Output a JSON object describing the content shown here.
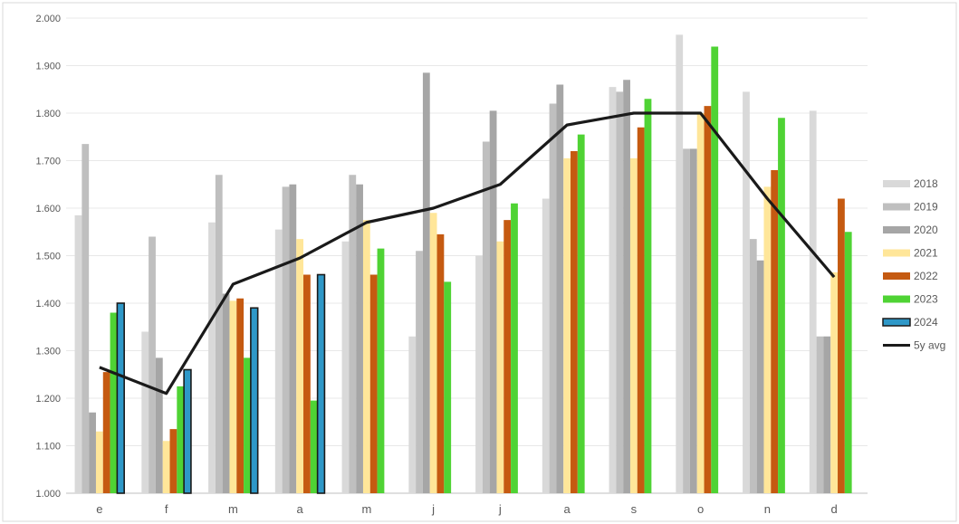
{
  "chart_data": {
    "type": "bar",
    "categories": [
      "e",
      "f",
      "m",
      "a",
      "m",
      "j",
      "j",
      "a",
      "s",
      "o",
      "n",
      "d"
    ],
    "ylim": [
      1000,
      2000
    ],
    "yticks": [
      "1.000",
      "1.100",
      "1.200",
      "1.300",
      "1.400",
      "1.500",
      "1.600",
      "1.700",
      "1.800",
      "1.900",
      "2.000"
    ],
    "grid": true,
    "legend_position": "right",
    "series": [
      {
        "name": "2018",
        "type": "bar",
        "color": "#d9d9d9",
        "values": [
          1585,
          1340,
          1570,
          1555,
          1530,
          1330,
          1500,
          1620,
          1855,
          1965,
          1845,
          1805
        ]
      },
      {
        "name": "2019",
        "type": "bar",
        "color": "#bfbfbf",
        "values": [
          1735,
          1540,
          1670,
          1645,
          1670,
          1510,
          1740,
          1820,
          1845,
          1725,
          1535,
          1330
        ]
      },
      {
        "name": "2020",
        "type": "bar",
        "color": "#a6a6a6",
        "values": [
          1170,
          1285,
          1420,
          1650,
          1650,
          1885,
          1805,
          1860,
          1870,
          1725,
          1490,
          1330
        ]
      },
      {
        "name": "2021",
        "type": "bar",
        "color": "#ffe699",
        "values": [
          1130,
          1110,
          1405,
          1535,
          1575,
          1590,
          1530,
          1705,
          1705,
          1800,
          1645,
          1465
        ]
      },
      {
        "name": "2022",
        "type": "bar",
        "color": "#c55a11",
        "values": [
          1255,
          1135,
          1410,
          1460,
          1460,
          1545,
          1575,
          1720,
          1770,
          1815,
          1680,
          1620
        ]
      },
      {
        "name": "2023",
        "type": "bar",
        "color": "#4fd334",
        "values": [
          1380,
          1225,
          1285,
          1195,
          1515,
          1445,
          1610,
          1755,
          1830,
          1940,
          1790,
          1550
        ]
      },
      {
        "name": "2024",
        "type": "bar",
        "color": "#2e98c8",
        "outline": "#1a1a1a",
        "values": [
          1400,
          1260,
          1390,
          1460,
          null,
          null,
          null,
          null,
          null,
          null,
          null,
          null
        ]
      },
      {
        "name": "5y avg",
        "type": "line",
        "color": "#1a1a1a",
        "values": [
          1265,
          1210,
          1440,
          1495,
          1570,
          1600,
          1650,
          1775,
          1800,
          1800,
          1620,
          1455
        ]
      }
    ]
  }
}
